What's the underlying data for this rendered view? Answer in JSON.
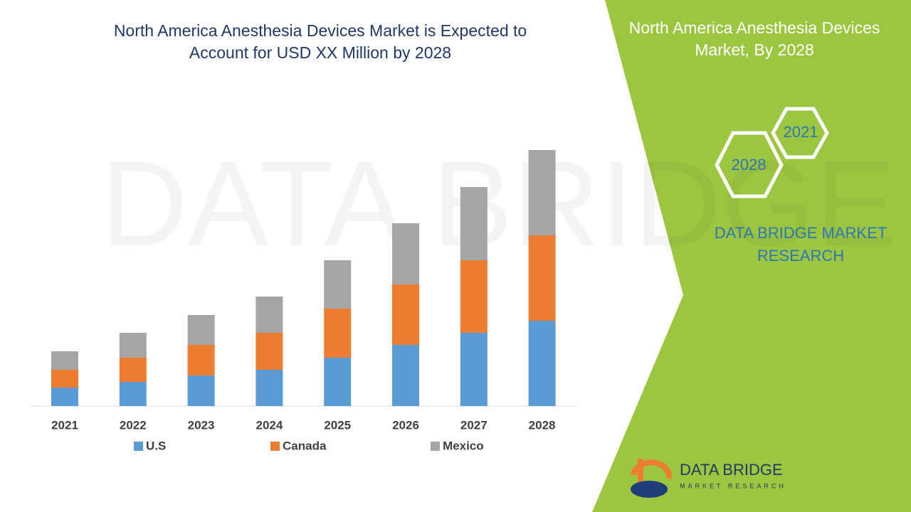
{
  "chart_data": {
    "type": "bar",
    "stacked": true,
    "title": "North America Anesthesia Devices Market is Expected to Account for USD XX Million by 2028",
    "categories": [
      "2021",
      "2022",
      "2023",
      "2024",
      "2025",
      "2026",
      "2027",
      "2028"
    ],
    "series": [
      {
        "name": "U.S",
        "color": "#5b9bd5",
        "values": [
          26,
          34,
          43,
          51,
          68,
          86,
          103,
          120
        ]
      },
      {
        "name": "Canada",
        "color": "#ed7d31",
        "values": [
          25,
          34,
          43,
          52,
          69,
          85,
          102,
          120
        ]
      },
      {
        "name": "Mexico",
        "color": "#a5a5a5",
        "values": [
          26,
          35,
          42,
          51,
          68,
          86,
          103,
          120
        ]
      }
    ],
    "ylim": [
      0,
      400
    ],
    "legend": "bottom"
  },
  "panel": {
    "title": "North America Anesthesia Devices Market, By 2028",
    "hexagons": [
      "2021",
      "2028"
    ],
    "brand": "DATA BRIDGE MARKET RESEARCH",
    "logo": {
      "name": "DATA BRIDGE",
      "tagline": "MARKET RESEARCH"
    }
  }
}
